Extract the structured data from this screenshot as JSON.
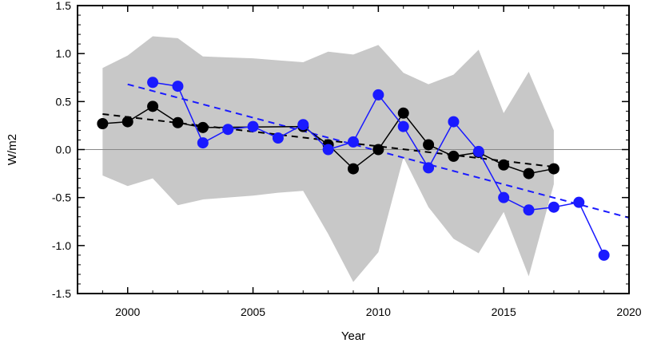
{
  "chart_data": {
    "type": "line",
    "title": "",
    "xlabel": "Year",
    "ylabel": "W/m2",
    "xlim": [
      1998,
      2020
    ],
    "ylim": [
      -1.5,
      1.5
    ],
    "xticks": [
      "2000",
      "2005",
      "2010",
      "2015",
      "2020"
    ],
    "yticks": [
      "1.5",
      "1.0",
      "0.5",
      "0.0",
      "-0.5",
      "-1.0",
      "-1.5"
    ],
    "zero_line": 0,
    "band": {
      "name": "range",
      "color": "#c8c8c8",
      "x": [
        1999,
        2000,
        2001,
        2002,
        2003,
        2004,
        2005,
        2006,
        2007,
        2008,
        2009,
        2010,
        2011,
        2012,
        2013,
        2014,
        2015,
        2016,
        2017
      ],
      "upper": [
        0.85,
        0.98,
        1.18,
        1.16,
        0.97,
        0.96,
        0.95,
        0.93,
        0.91,
        1.02,
        0.99,
        1.09,
        0.8,
        0.68,
        0.78,
        1.04,
        0.38,
        0.81,
        0.2
      ],
      "lower": [
        -0.27,
        -0.38,
        -0.3,
        -0.58,
        -0.52,
        -0.5,
        -0.48,
        -0.45,
        -0.43,
        -0.88,
        -1.38,
        -1.07,
        -0.08,
        -0.6,
        -0.93,
        -1.08,
        -0.65,
        -1.32,
        -0.36
      ]
    },
    "series": [
      {
        "name": "black",
        "color": "#000000",
        "x": [
          1999,
          2000,
          2001,
          2002,
          2003,
          2004,
          2005,
          2006,
          2007,
          2008,
          2009,
          2010,
          2011,
          2012,
          2013,
          2014,
          2015,
          2016,
          2017
        ],
        "values": [
          0.27,
          0.29,
          0.45,
          0.28,
          0.23,
          null,
          null,
          null,
          0.24,
          0.05,
          -0.2,
          0.0,
          0.38,
          0.05,
          -0.07,
          -0.03,
          -0.16,
          -0.25,
          -0.2
        ]
      },
      {
        "name": "blue",
        "color": "#1a1aff",
        "x": [
          2001,
          2002,
          2003,
          2004,
          2005,
          2006,
          2007,
          2008,
          2009,
          2010,
          2011,
          2012,
          2013,
          2014,
          2015,
          2016,
          2017,
          2018,
          2019
        ],
        "values": [
          0.7,
          0.66,
          0.07,
          0.21,
          0.24,
          0.12,
          0.26,
          0.0,
          0.08,
          0.57,
          0.24,
          -0.19,
          0.29,
          -0.02,
          -0.5,
          -0.63,
          -0.6,
          -0.55,
          -1.1
        ]
      }
    ],
    "trend_lines": [
      {
        "name": "black-trend",
        "color": "#000000",
        "x": [
          1999,
          2017
        ],
        "y": [
          0.37,
          -0.18
        ]
      },
      {
        "name": "blue-trend",
        "color": "#1a1aff",
        "x": [
          2000,
          2020
        ],
        "y": [
          0.68,
          -0.71
        ]
      }
    ]
  }
}
